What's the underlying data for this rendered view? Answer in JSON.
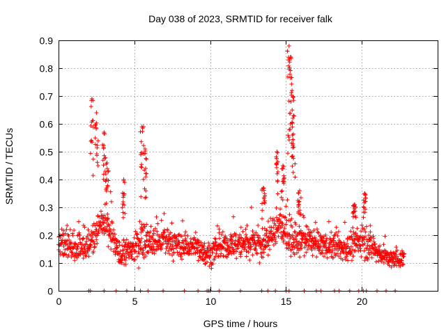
{
  "chart_data": {
    "type": "scatter",
    "title": "Day 038 of 2023, SRMTID for receiver falk",
    "xlabel": "GPS time / hours",
    "ylabel": "SRMTID / TECUs",
    "xlim": [
      0,
      25
    ],
    "ylim": [
      0,
      0.9
    ],
    "x_ticks": [
      0,
      5,
      10,
      15,
      20
    ],
    "x_tick_labels": [
      "0",
      "5",
      "10",
      "15",
      "20"
    ],
    "y_ticks": [
      0,
      0.1,
      0.2,
      0.3,
      0.4,
      0.5,
      0.6,
      0.7,
      0.8,
      0.9
    ],
    "y_tick_labels": [
      "0",
      "0.1",
      "0.2",
      "0.3",
      "0.4",
      "0.5",
      "0.6",
      "0.7",
      "0.8",
      "0.9"
    ],
    "grid": true,
    "marker": "+",
    "color": "#ff0000",
    "x_range_of_data": [
      0,
      22.8
    ],
    "envelope": {
      "x": [
        0.0,
        0.5,
        1.0,
        1.5,
        2.0,
        2.5,
        3.0,
        3.5,
        4.0,
        4.5,
        5.0,
        5.5,
        6.0,
        7.0,
        8.0,
        9.0,
        10.0,
        10.5,
        11.0,
        12.0,
        13.0,
        13.5,
        14.0,
        14.5,
        15.0,
        15.5,
        16.0,
        16.5,
        17.0,
        18.0,
        19.0,
        20.0,
        20.5,
        21.0,
        22.0,
        22.8
      ],
      "center": [
        0.16,
        0.18,
        0.15,
        0.16,
        0.17,
        0.22,
        0.24,
        0.2,
        0.13,
        0.14,
        0.15,
        0.19,
        0.17,
        0.18,
        0.16,
        0.16,
        0.13,
        0.15,
        0.16,
        0.17,
        0.18,
        0.16,
        0.2,
        0.24,
        0.21,
        0.17,
        0.18,
        0.18,
        0.17,
        0.16,
        0.15,
        0.18,
        0.17,
        0.14,
        0.11,
        0.12
      ],
      "spread": [
        0.06,
        0.07,
        0.07,
        0.07,
        0.08,
        0.09,
        0.1,
        0.08,
        0.06,
        0.06,
        0.07,
        0.08,
        0.07,
        0.07,
        0.06,
        0.06,
        0.05,
        0.06,
        0.06,
        0.07,
        0.08,
        0.07,
        0.08,
        0.09,
        0.09,
        0.07,
        0.07,
        0.06,
        0.06,
        0.06,
        0.06,
        0.07,
        0.07,
        0.05,
        0.04,
        0.04
      ]
    },
    "peaks": [
      {
        "x": 2.2,
        "y": 0.69
      },
      {
        "x": 2.5,
        "y": 0.64
      },
      {
        "x": 3.0,
        "y": 0.57
      },
      {
        "x": 3.2,
        "y": 0.46
      },
      {
        "x": 4.3,
        "y": 0.4
      },
      {
        "x": 5.5,
        "y": 0.59
      },
      {
        "x": 5.7,
        "y": 0.51
      },
      {
        "x": 13.5,
        "y": 0.37
      },
      {
        "x": 14.4,
        "y": 0.5
      },
      {
        "x": 14.8,
        "y": 0.45
      },
      {
        "x": 15.2,
        "y": 0.88
      },
      {
        "x": 15.3,
        "y": 0.84
      },
      {
        "x": 15.4,
        "y": 0.72
      },
      {
        "x": 15.5,
        "y": 0.63
      },
      {
        "x": 15.9,
        "y": 0.36
      },
      {
        "x": 19.5,
        "y": 0.31
      },
      {
        "x": 20.2,
        "y": 0.35
      }
    ],
    "zero_points_x": [
      2.0,
      2.1,
      3.0,
      3.8,
      4.5,
      5.4,
      5.9,
      6.9,
      8.3,
      9.2,
      9.8,
      9.9,
      10.0,
      10.6,
      12.0,
      13.4,
      13.8,
      14.3,
      15.0,
      15.2,
      16.2,
      17.0,
      17.3,
      18.2,
      18.5,
      19.2,
      19.8,
      20.1,
      20.3,
      21.0,
      21.6,
      22.2
    ]
  }
}
